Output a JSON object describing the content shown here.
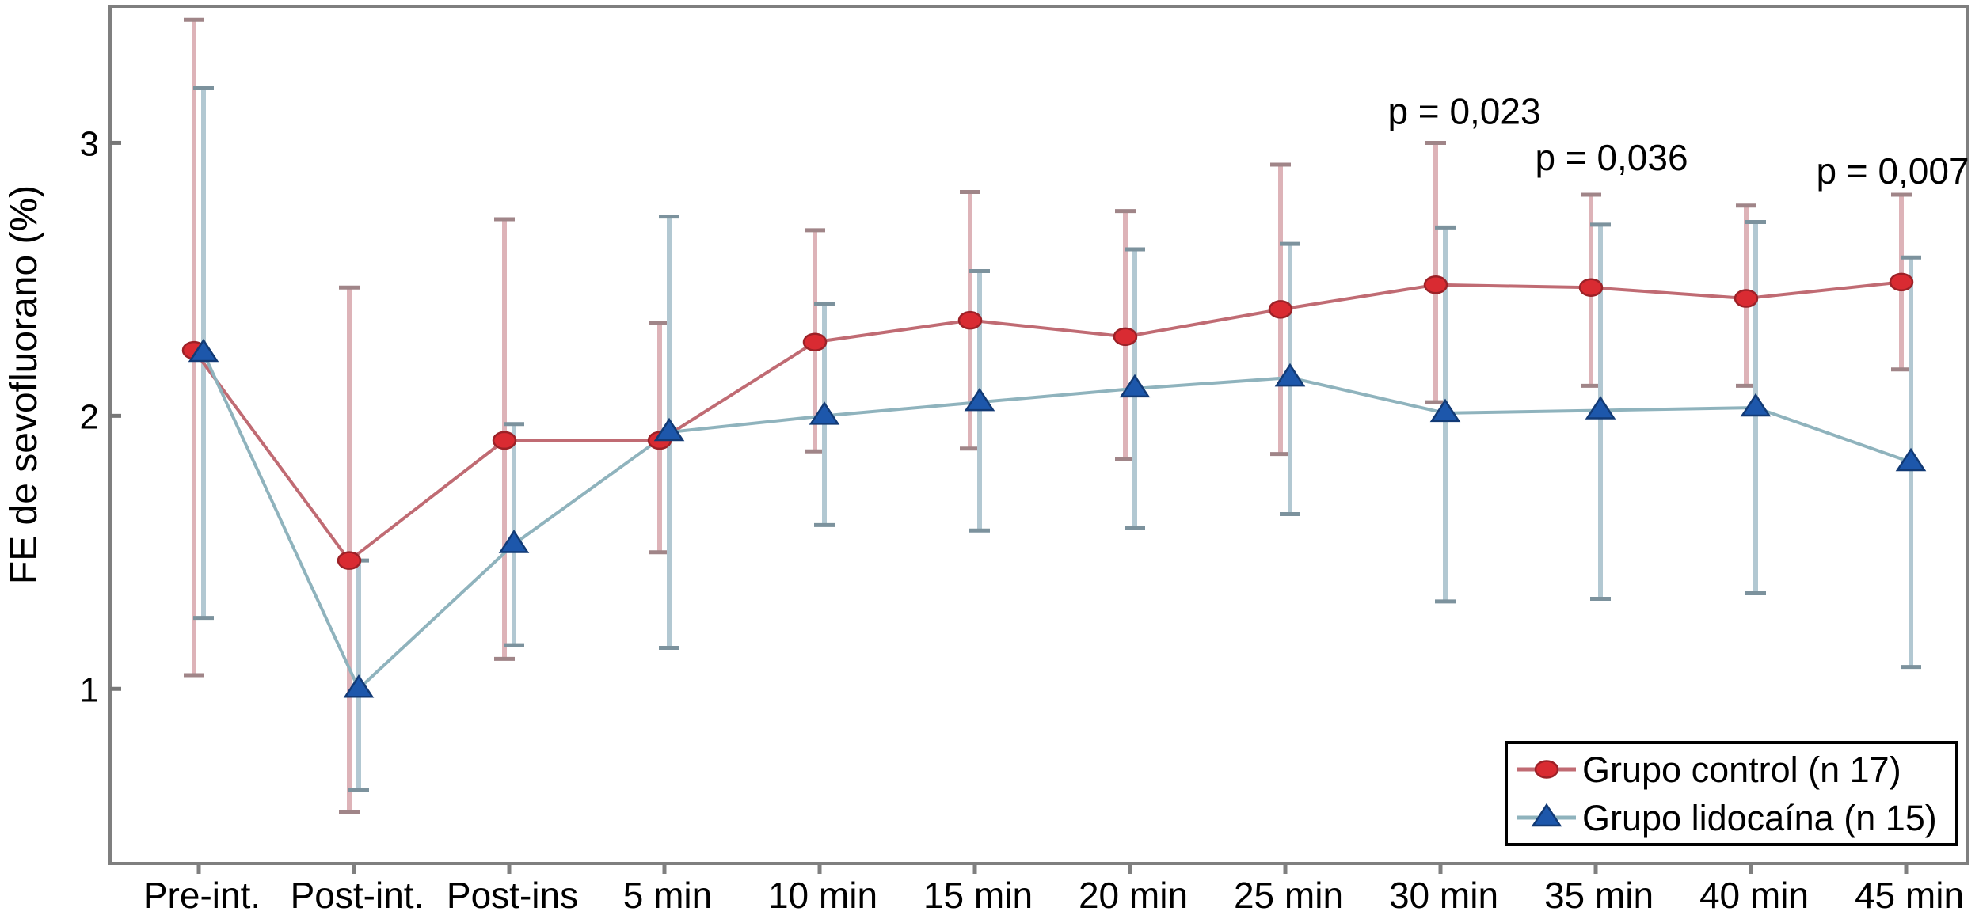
{
  "figure": {
    "background": "#ffffff",
    "frame_color": "#7f7f7f",
    "tick_color": "#777777",
    "text_color": "#000000",
    "ylabel": "FE de sevofluorano (%)"
  },
  "chart_data": {
    "type": "line",
    "title": "",
    "xlabel": "",
    "ylabel": "FE de sevofluorano (%)",
    "categories": [
      "Pre-int.",
      "Post-int.",
      "Post-ins",
      "5 min",
      "10 min",
      "15 min",
      "20 min",
      "25 min",
      "30 min",
      "35 min",
      "40 min",
      "45 min"
    ],
    "ylim": [
      0.36,
      3.5
    ],
    "yticks": [
      1,
      2,
      3
    ],
    "grid": false,
    "legend_position": "bottom-right",
    "error_bars": true,
    "series": [
      {
        "name": "Grupo control (n 17)",
        "marker": "circle",
        "marker_color": "#d92b32",
        "marker_edge_color": "#9c2127",
        "line_color": "#c06b73",
        "error_bar_color": "#ddb3b8",
        "error_cap_color": "#a08588",
        "values": [
          2.24,
          1.47,
          1.91,
          1.91,
          2.27,
          2.35,
          2.29,
          2.39,
          2.48,
          2.47,
          2.43,
          2.49
        ],
        "upper": [
          3.45,
          2.47,
          2.72,
          2.34,
          2.68,
          2.82,
          2.75,
          2.92,
          3.0,
          2.81,
          2.77,
          2.81
        ],
        "lower": [
          1.05,
          0.55,
          1.11,
          1.5,
          1.87,
          1.88,
          1.84,
          1.86,
          2.05,
          2.11,
          2.11,
          2.17
        ]
      },
      {
        "name": "Grupo lidocaína (n 15)",
        "marker": "triangle",
        "marker_color": "#1d57ab",
        "marker_edge_color": "#123a75",
        "line_color": "#8fb3bd",
        "error_bar_color": "#b2c8d2",
        "error_cap_color": "#7c929d",
        "values": [
          2.23,
          1.0,
          1.53,
          1.94,
          2.0,
          2.05,
          2.1,
          2.14,
          2.01,
          2.02,
          2.03,
          1.83
        ],
        "upper": [
          3.2,
          1.47,
          1.97,
          2.73,
          2.41,
          2.53,
          2.61,
          2.63,
          2.69,
          2.7,
          2.71,
          2.58
        ],
        "lower": [
          1.26,
          0.63,
          1.16,
          1.15,
          1.6,
          1.58,
          1.59,
          1.64,
          1.32,
          1.33,
          1.35,
          1.08
        ]
      }
    ],
    "annotations": [
      {
        "text": "p = 0,023",
        "category_index": 8,
        "dx": 30,
        "y": 3.07
      },
      {
        "text": "p = 0,036",
        "category_index": 9,
        "dx": 20,
        "y": 2.9
      },
      {
        "text": "p = 0,007",
        "category_index": 11,
        "dx": -17,
        "y": 2.85
      }
    ]
  }
}
